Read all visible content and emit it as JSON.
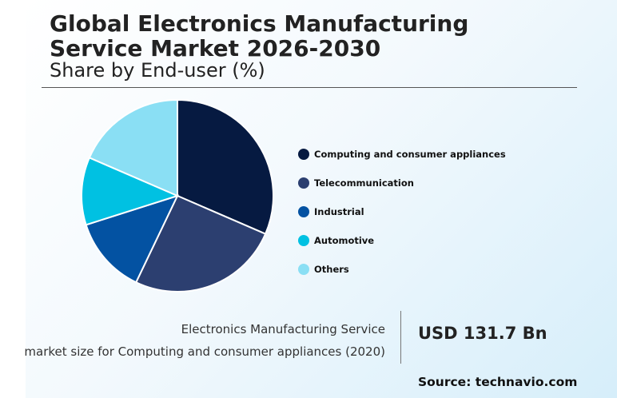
{
  "header": {
    "title": "Global Electronics Manufacturing Service Market 2026-2030",
    "subtitle": "Share by End-user (%)"
  },
  "chart_data": {
    "type": "pie",
    "title": "Global Electronics Manufacturing Service Market 2026-2030",
    "subtitle": "Share by End-user (%)",
    "legend_position": "right",
    "slices": [
      {
        "label": "Computing and consumer appliances",
        "value": 31.5,
        "color": "#061a41"
      },
      {
        "label": "Telecommunication",
        "value": 25.6,
        "color": "#2c3f70"
      },
      {
        "label": "Industrial",
        "value": 13.0,
        "color": "#0352a2"
      },
      {
        "label": "Automotive",
        "value": 11.4,
        "color": "#00c1e2"
      },
      {
        "label": "Others",
        "value": 18.5,
        "color": "#8adff4"
      }
    ]
  },
  "footer": {
    "description_line1": "Electronics Manufacturing Service",
    "description_line2": "market size for Computing and consumer appliances (2020)",
    "value": "USD 131.7 Bn",
    "source": "Source: technavio.com"
  }
}
